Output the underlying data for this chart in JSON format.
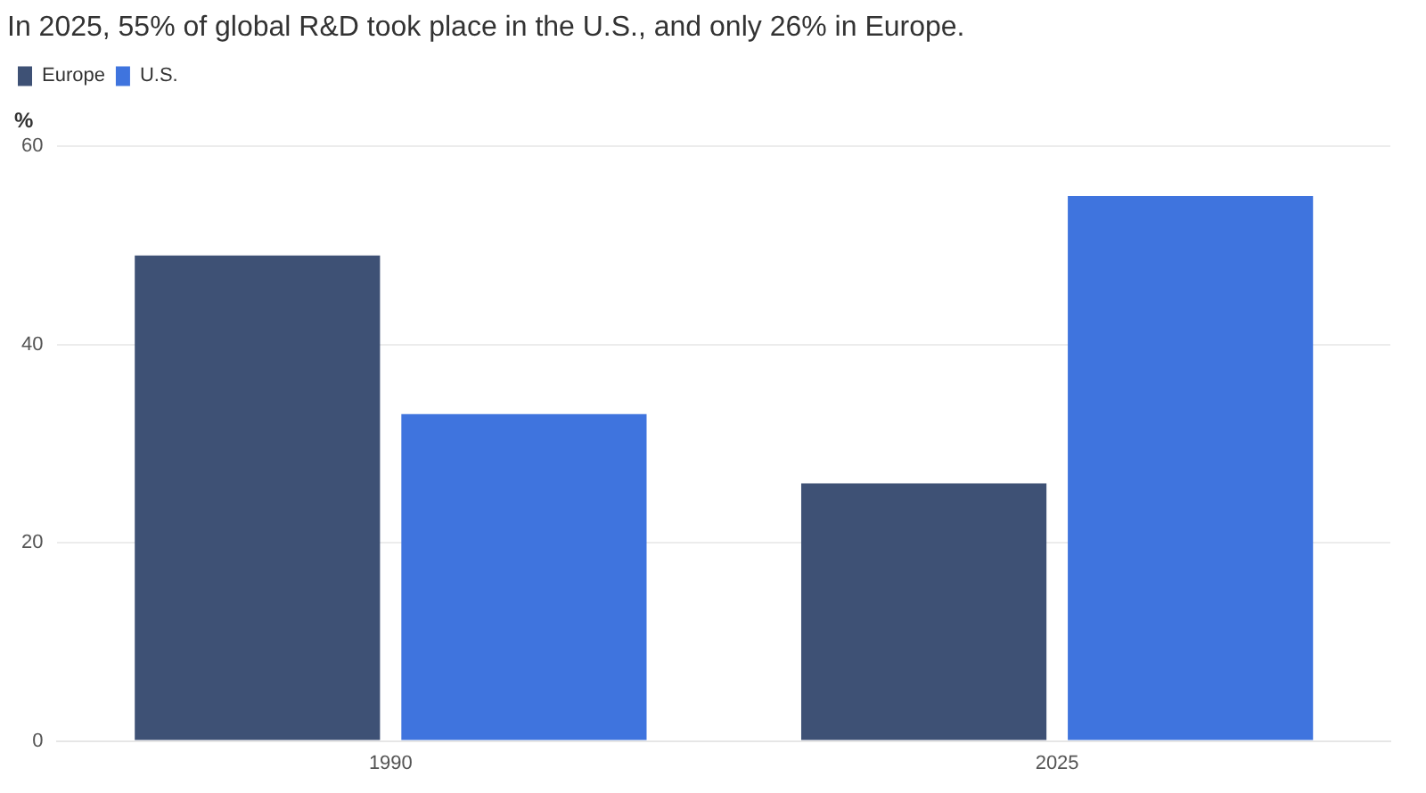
{
  "chart_data": {
    "type": "bar",
    "title": "In 2025, 55% of global R&D took place in the U.S., and only 26% in Europe.",
    "ylabel": "%",
    "categories": [
      "1990",
      "2025"
    ],
    "series": [
      {
        "name": "Europe",
        "color": "#3e5175",
        "values": [
          49,
          26
        ]
      },
      {
        "name": "U.S.",
        "color": "#3f74de",
        "values": [
          33,
          55
        ]
      }
    ],
    "ylim": [
      0,
      60
    ],
    "yticks": [
      0,
      20,
      40,
      60
    ],
    "grid": "y",
    "legend": "top left"
  }
}
